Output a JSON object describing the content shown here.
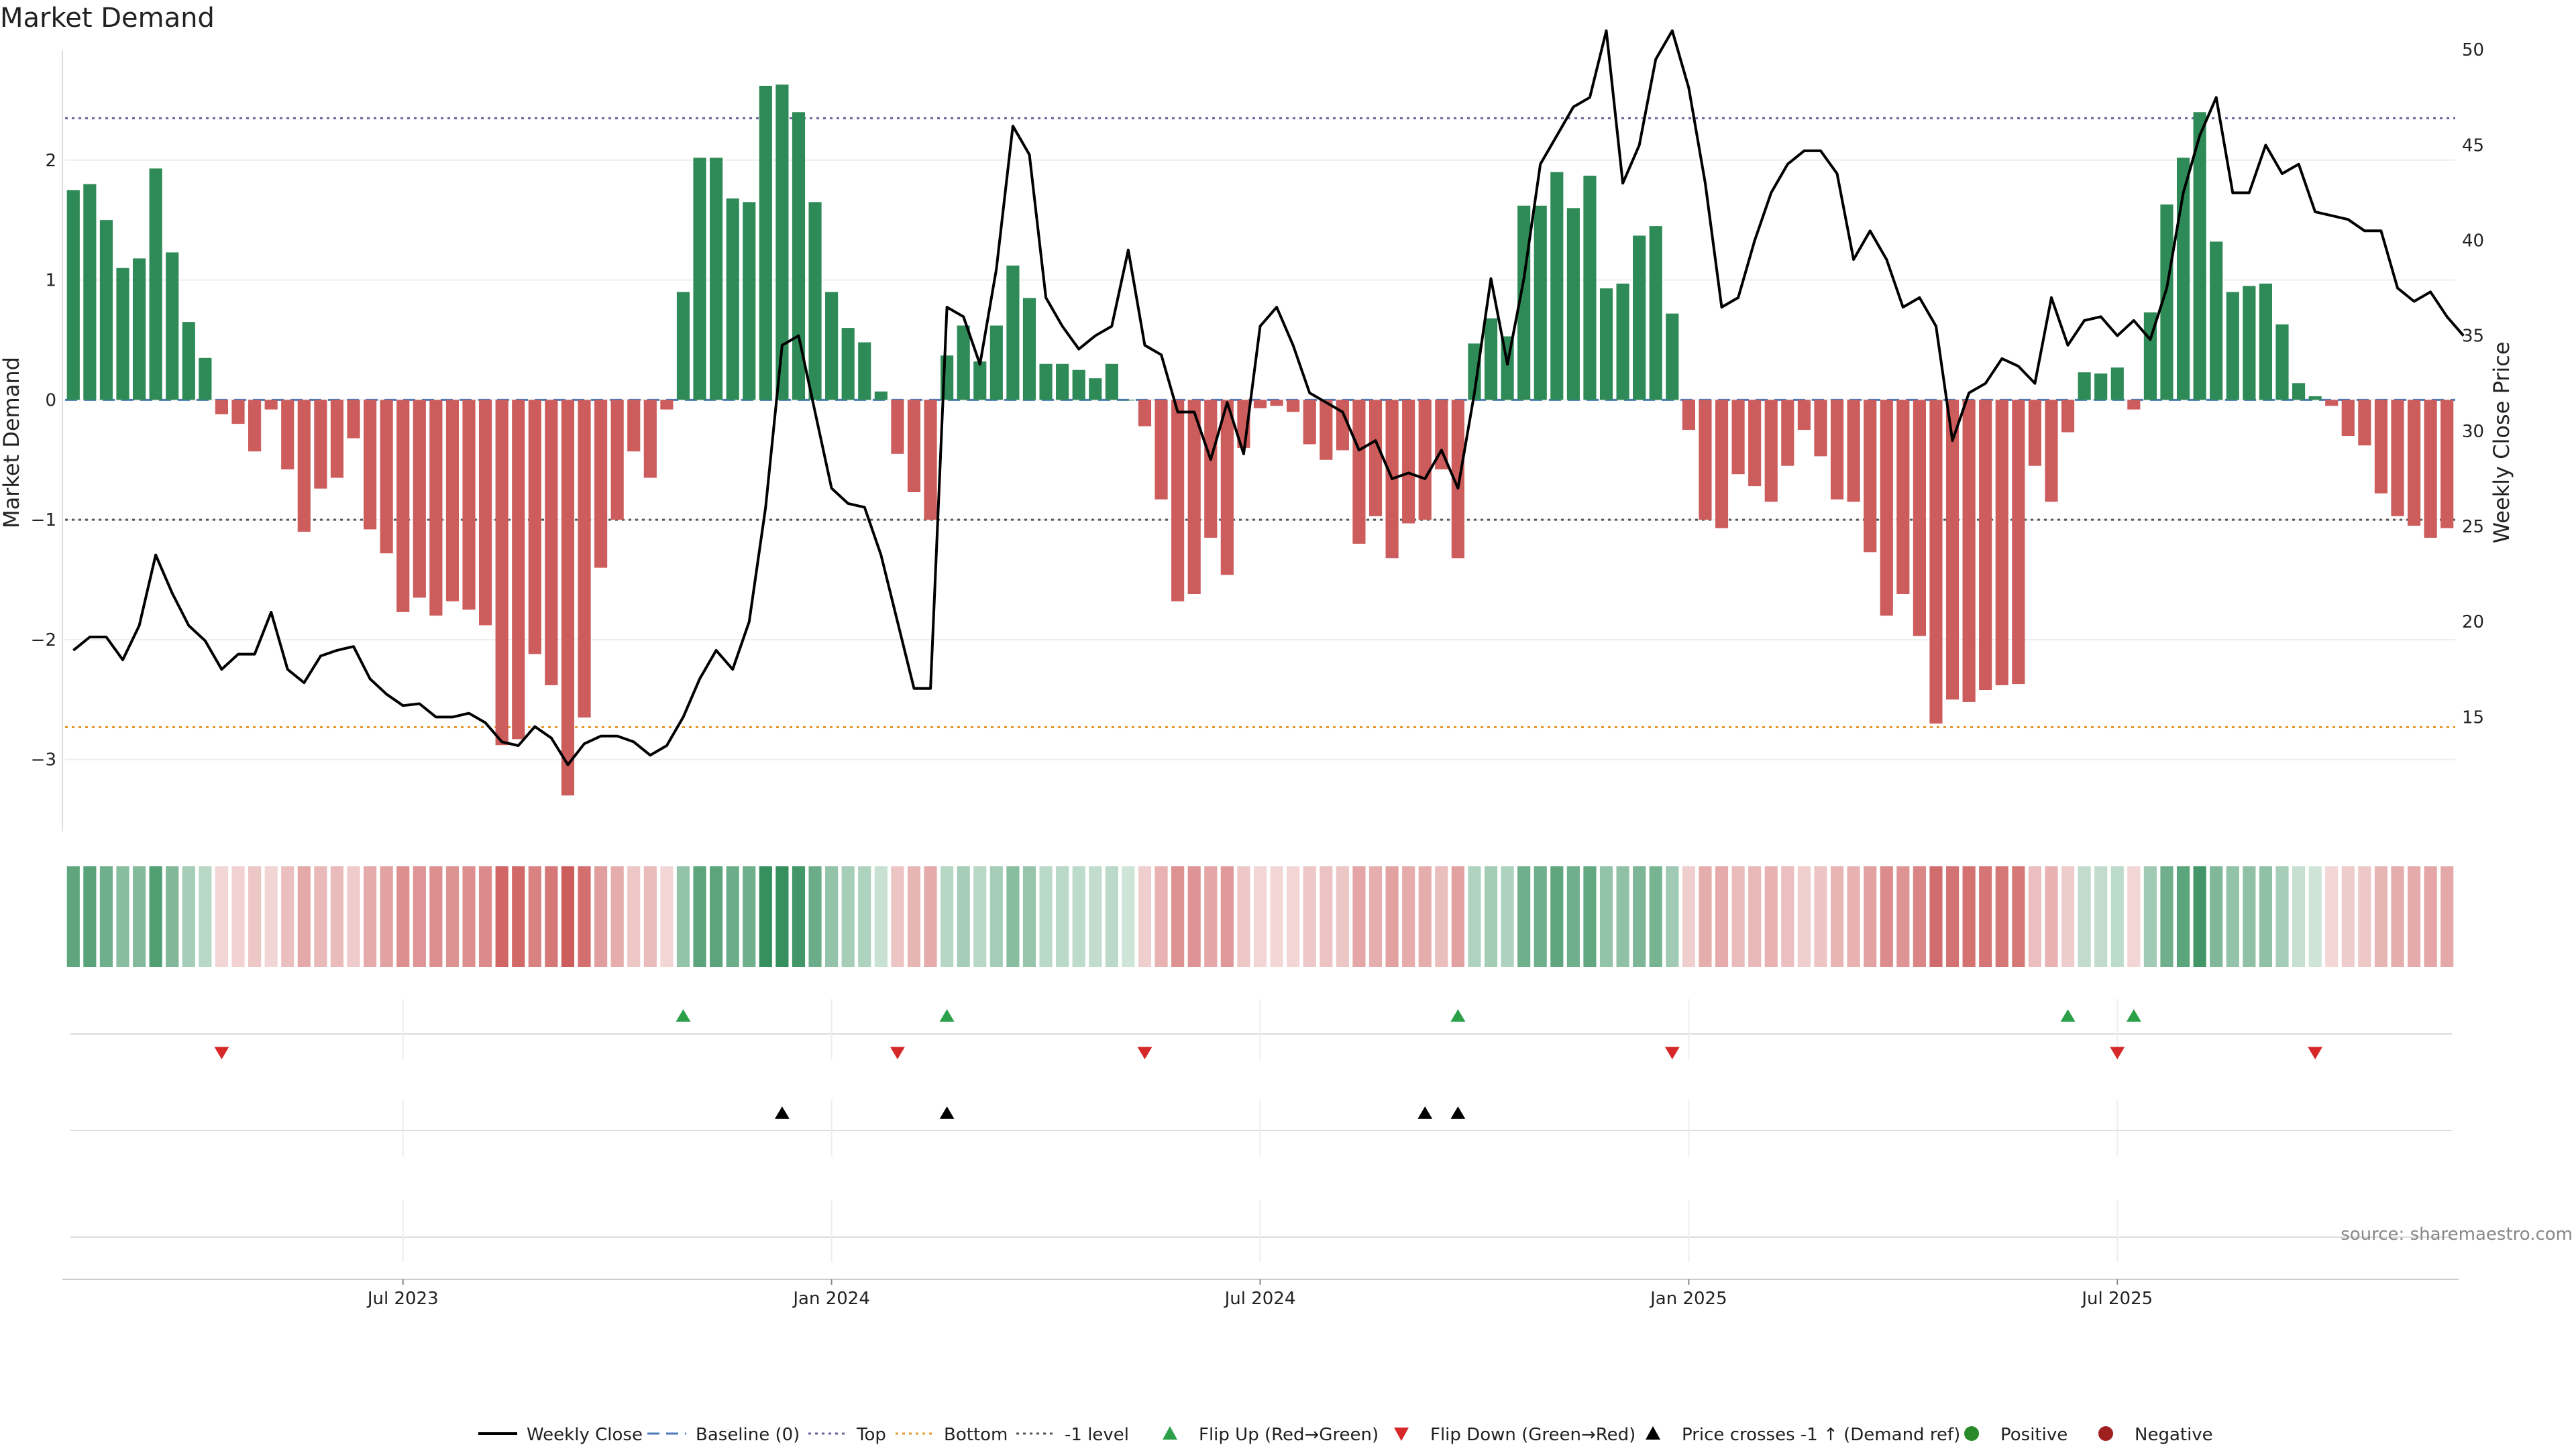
{
  "chart_data": {
    "type": "bar",
    "title": "Market Demand",
    "ylabel": "Market Demand",
    "y2label": "Weekly Close Price",
    "ylim": [
      -3.6,
      3.0
    ],
    "y2lim": [
      9.0,
      50.5
    ],
    "yticks": [
      {
        "value": 2,
        "label": "2"
      },
      {
        "value": 1,
        "label": "1"
      },
      {
        "value": 0,
        "label": "0"
      },
      {
        "value": -1,
        "label": "−1"
      },
      {
        "value": -2,
        "label": "−2"
      },
      {
        "value": -3,
        "label": "−3"
      }
    ],
    "y2ticks": [
      {
        "value": 50,
        "label": "50"
      },
      {
        "value": 45,
        "label": "45"
      },
      {
        "value": 40,
        "label": "40"
      },
      {
        "value": 35,
        "label": "35"
      },
      {
        "value": 30,
        "label": "30"
      },
      {
        "value": 25,
        "label": "25"
      },
      {
        "value": 20,
        "label": "20"
      },
      {
        "value": 15,
        "label": "15"
      }
    ],
    "xticks": [
      {
        "week": 20,
        "label": "Jul 2023"
      },
      {
        "week": 46,
        "label": "Jan 2024"
      },
      {
        "week": 72,
        "label": "Jul 2024"
      },
      {
        "week": 98,
        "label": "Jan 2025"
      },
      {
        "week": 124,
        "label": "Jul 2025"
      }
    ],
    "reference_lines": {
      "top": 2.35,
      "bottom": -2.73,
      "minus_one": -1,
      "baseline": 0
    },
    "demand": [
      1.75,
      1.8,
      1.5,
      1.1,
      1.18,
      1.93,
      1.23,
      0.65,
      0.35,
      -0.12,
      -0.2,
      -0.43,
      -0.08,
      -0.58,
      -1.1,
      -0.74,
      -0.65,
      -0.32,
      -1.08,
      -1.28,
      -1.77,
      -1.65,
      -1.8,
      -1.68,
      -1.75,
      -1.88,
      -2.88,
      -2.83,
      -2.12,
      -2.38,
      -3.3,
      -2.65,
      -1.4,
      -1.0,
      -0.43,
      -0.65,
      -0.08,
      0.9,
      2.02,
      2.02,
      1.68,
      1.65,
      2.62,
      2.63,
      2.4,
      1.65,
      0.9,
      0.6,
      0.48,
      0.07,
      -0.45,
      -0.77,
      -1.0,
      0.37,
      0.62,
      0.32,
      0.62,
      1.12,
      0.85,
      0.3,
      0.3,
      0.25,
      0.18,
      0.3,
      0.0,
      -0.22,
      -0.83,
      -1.68,
      -1.62,
      -1.15,
      -1.46,
      -0.4,
      -0.07,
      -0.05,
      -0.1,
      -0.37,
      -0.5,
      -0.42,
      -1.2,
      -0.97,
      -1.32,
      -1.03,
      -1.0,
      -0.58,
      -1.32,
      0.47,
      0.68,
      0.53,
      1.62,
      1.62,
      1.9,
      1.6,
      1.87,
      0.93,
      0.97,
      1.37,
      1.45,
      0.72,
      -0.25,
      -1.0,
      -1.07,
      -0.62,
      -0.72,
      -0.85,
      -0.55,
      -0.25,
      -0.47,
      -0.83,
      -0.85,
      -1.27,
      -1.8,
      -1.62,
      -1.97,
      -2.7,
      -2.5,
      -2.52,
      -2.42,
      -2.38,
      -2.37,
      -0.55,
      -0.85,
      -0.27,
      0.23,
      0.22,
      0.27,
      -0.08,
      0.73,
      1.63,
      2.02,
      2.4,
      1.32,
      0.9,
      0.95,
      0.97,
      0.63,
      0.14,
      0.03,
      -0.05,
      -0.3,
      -0.38,
      -0.78,
      -0.97,
      -1.05,
      -1.15,
      -1.07
    ],
    "close": [
      18.5,
      19.2,
      19.2,
      18.0,
      19.8,
      23.5,
      21.5,
      19.8,
      19.0,
      17.5,
      18.3,
      18.3,
      20.5,
      17.5,
      16.8,
      18.2,
      18.5,
      18.7,
      17.0,
      16.2,
      15.6,
      15.7,
      15.0,
      15.0,
      15.2,
      14.7,
      13.7,
      13.5,
      14.5,
      13.9,
      12.5,
      13.6,
      14.0,
      14.0,
      13.7,
      13.0,
      13.5,
      15.0,
      17.0,
      18.5,
      17.5,
      20.0,
      26.0,
      34.5,
      35.0,
      31.0,
      27.0,
      26.2,
      26.0,
      23.5,
      20.0,
      16.5,
      16.5,
      36.5,
      36.0,
      33.5,
      38.5,
      46.0,
      44.5,
      37.0,
      35.5,
      34.3,
      35.0,
      35.5,
      39.5,
      34.5,
      34.0,
      31.0,
      31.0,
      28.5,
      31.5,
      28.8,
      35.5,
      36.5,
      34.5,
      32.0,
      31.5,
      31.0,
      29.0,
      29.5,
      27.5,
      27.8,
      27.5,
      29.0,
      27.0,
      32.0,
      38.0,
      33.5,
      38.0,
      44.0,
      45.5,
      47.0,
      47.5,
      51.0,
      43.0,
      45.0,
      49.5,
      51.0,
      48.0,
      43.0,
      36.5,
      37.0,
      40.0,
      42.5,
      44.0,
      44.7,
      44.7,
      43.5,
      39.0,
      40.5,
      39.0,
      36.5,
      37.0,
      35.5,
      29.5,
      32.0,
      32.5,
      33.8,
      33.4,
      32.5,
      37.0,
      34.5,
      35.8,
      36.0,
      35.0,
      35.8,
      34.8,
      37.5,
      42.5,
      45.5,
      47.5,
      42.5,
      42.5,
      45.0,
      43.5,
      44.0,
      41.5,
      41.3,
      41.1,
      40.5,
      40.5,
      37.5,
      36.8,
      37.3,
      36.0,
      35.0
    ],
    "color_strip": [
      0.7,
      0.73,
      0.6,
      0.45,
      0.48,
      0.78,
      0.5,
      0.27,
      0.15,
      0.05,
      0.08,
      0.17,
      0.04,
      0.22,
      0.4,
      0.28,
      0.25,
      0.13,
      0.38,
      0.45,
      0.6,
      0.55,
      0.6,
      0.57,
      0.6,
      0.63,
      0.92,
      0.9,
      0.7,
      0.78,
      1.0,
      0.85,
      0.48,
      0.36,
      0.17,
      0.25,
      0.04,
      0.38,
      0.72,
      0.72,
      0.62,
      0.6,
      0.95,
      0.95,
      0.88,
      0.62,
      0.38,
      0.27,
      0.22,
      0.05,
      0.18,
      0.3,
      0.38,
      0.16,
      0.27,
      0.15,
      0.27,
      0.45,
      0.36,
      0.14,
      0.14,
      0.12,
      0.09,
      0.14,
      0.02,
      0.1,
      0.32,
      0.58,
      0.56,
      0.42,
      0.52,
      0.16,
      0.04,
      0.03,
      0.05,
      0.15,
      0.2,
      0.17,
      0.42,
      0.35,
      0.45,
      0.37,
      0.36,
      0.23,
      0.45,
      0.2,
      0.28,
      0.22,
      0.6,
      0.6,
      0.7,
      0.6,
      0.68,
      0.38,
      0.4,
      0.52,
      0.55,
      0.3,
      0.1,
      0.36,
      0.38,
      0.25,
      0.28,
      0.32,
      0.22,
      0.1,
      0.19,
      0.31,
      0.32,
      0.45,
      0.62,
      0.56,
      0.67,
      0.88,
      0.82,
      0.83,
      0.8,
      0.79,
      0.78,
      0.22,
      0.32,
      0.12,
      0.1,
      0.1,
      0.12,
      0.04,
      0.3,
      0.6,
      0.72,
      0.88,
      0.5,
      0.38,
      0.4,
      0.4,
      0.27,
      0.07,
      0.02,
      0.03,
      0.12,
      0.16,
      0.3,
      0.36,
      0.38,
      0.42,
      0.4
    ],
    "flip_up_weeks": [
      37,
      53,
      84,
      121,
      125
    ],
    "flip_down_weeks": [
      9,
      50,
      65,
      97,
      124,
      136
    ],
    "price_cross_weeks": [
      43,
      53,
      82,
      84
    ],
    "annotations": {
      "source": "source: sharemaestro.com"
    },
    "legend": [
      {
        "kind": "line-solid",
        "label": "Weekly Close"
      },
      {
        "kind": "line-dashed",
        "label": "Baseline (0)"
      },
      {
        "kind": "line-dotted-purple",
        "label": "Top"
      },
      {
        "kind": "line-dotted-orange",
        "label": "Bottom"
      },
      {
        "kind": "line-dotted-gray",
        "label": "-1 level"
      },
      {
        "kind": "tri-up-green",
        "label": "Flip Up (Red→Green)"
      },
      {
        "kind": "tri-down-red",
        "label": "Flip Down (Green→Red)"
      },
      {
        "kind": "tri-up-black",
        "label": "Price crosses -1 ↑ (Demand ref)"
      },
      {
        "kind": "dot-green",
        "label": "Positive"
      },
      {
        "kind": "dot-red",
        "label": "Negative"
      }
    ]
  },
  "colors": {
    "positive_bar": "#2e8b57",
    "negative_bar": "#cd5c5c",
    "close_line": "#000000",
    "baseline": "#4a7ab8",
    "top_line": "#6a5f9a",
    "bottom_line": "#e59a2b",
    "minus_one_line": "#555555",
    "flip_up": "#2ca048",
    "flip_down": "#d62828",
    "cross": "#000000",
    "positive_dot": "#2a8a2a",
    "negative_dot": "#a02020"
  }
}
